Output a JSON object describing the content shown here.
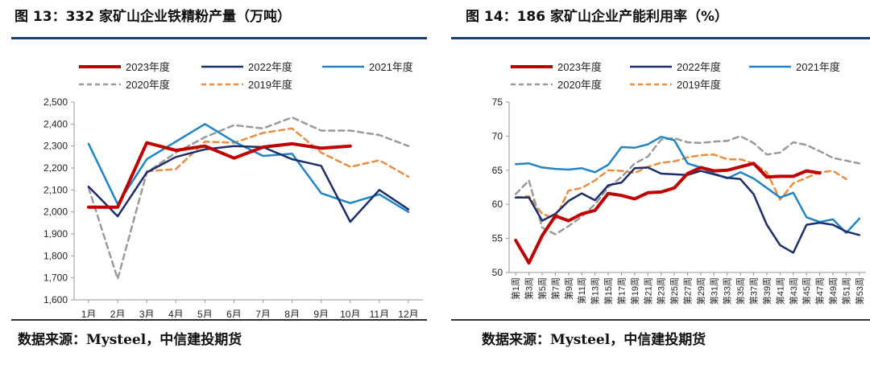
{
  "charts": [
    {
      "fig_label": "图 13：",
      "title_num": "332",
      "title_text": " 家矿山企业铁精粉产量（万吨）",
      "source": "数据来源：Mysteel，中信建投期货",
      "chart_data": {
        "type": "line",
        "title": "332 家矿山企业铁精粉产量（万吨）",
        "categories": [
          "1月",
          "2月",
          "3月",
          "4月",
          "5月",
          "6月",
          "7月",
          "8月",
          "9月",
          "10月",
          "11月",
          "12月"
        ],
        "ylim": [
          1600,
          2500
        ],
        "yticks": [
          1600,
          1700,
          1800,
          1900,
          2000,
          2100,
          2200,
          2300,
          2400,
          2500
        ],
        "ytick_labels": [
          "1,600",
          "1,700",
          "1,800",
          "1,900",
          "2,000",
          "2,100",
          "2,200",
          "2,300",
          "2,400",
          "2,500"
        ],
        "series": [
          {
            "name": "2023年度",
            "color": "#c00000",
            "dash": false,
            "width": 4,
            "values": [
              2022,
              2022,
              2315,
              2280,
              2300,
              2245,
              2295,
              2310,
              2290,
              2300,
              null,
              null
            ]
          },
          {
            "name": "2022年度",
            "color": "#1a2f6b",
            "dash": false,
            "width": 2.5,
            "values": [
              2115,
              1980,
              2180,
              2250,
              2285,
              2300,
              2295,
              2240,
              2210,
              1955,
              2100,
              2012
            ]
          },
          {
            "name": "2021年度",
            "color": "#1f85c8",
            "dash": false,
            "width": 2.5,
            "values": [
              2310,
              2035,
              2240,
              2320,
              2400,
              2320,
              2255,
              2265,
              2085,
              2040,
              2080,
              2000
            ]
          },
          {
            "name": "2020年度",
            "color": "#9a9a9a",
            "dash": true,
            "width": 2.5,
            "values": [
              2110,
              1695,
              2180,
              2270,
              2340,
              2395,
              2380,
              2430,
              2370,
              2370,
              2350,
              2300
            ]
          },
          {
            "name": "2019年度",
            "color": "#f08a3c",
            "dash": true,
            "width": 2.5,
            "values": [
              null,
              null,
              2185,
              2195,
              2320,
              2315,
              2360,
              2380,
              2270,
              2205,
              2235,
              2160
            ]
          }
        ]
      }
    },
    {
      "fig_label": "图 14：",
      "title_num": "186",
      "title_text": " 家矿山企业产能利用率（%）",
      "source": "数据来源：Mysteel，中信建投期货",
      "chart_data": {
        "type": "line",
        "title": "186 家矿山企业产能利用率（%）",
        "categories": [
          "第1周",
          "第3周",
          "第5周",
          "第7周",
          "第9周",
          "第11周",
          "第13周",
          "第15周",
          "第17周",
          "第19周",
          "第21周",
          "第23周",
          "第25周",
          "第27周",
          "第29周",
          "第31周",
          "第33周",
          "第35周",
          "第37周",
          "第39周",
          "第41周",
          "第43周",
          "第45周",
          "第47周",
          "第49周",
          "第51周",
          "第53周"
        ],
        "ylim": [
          50,
          75
        ],
        "yticks": [
          50,
          55,
          60,
          65,
          70,
          75
        ],
        "ytick_labels": [
          "50",
          "55",
          "60",
          "65",
          "70",
          "75"
        ],
        "series": [
          {
            "name": "2023年度",
            "color": "#c00000",
            "dash": false,
            "width": 4,
            "values": [
              54.7,
              51.4,
              55.4,
              58.3,
              57.6,
              58.6,
              59.1,
              61.6,
              61.3,
              60.8,
              61.7,
              61.8,
              62.4,
              64.5,
              65.4,
              64.9,
              65.0,
              65.5,
              66.0,
              64.0,
              64.1,
              64.1,
              64.9,
              64.6,
              null,
              null,
              null
            ]
          },
          {
            "name": "2022年度",
            "color": "#1a2f6b",
            "dash": false,
            "width": 2.5,
            "values": [
              61.0,
              61.0,
              57.6,
              58.6,
              60.5,
              61.6,
              60.6,
              62.8,
              63.2,
              65.3,
              65.4,
              64.5,
              64.4,
              64.3,
              64.9,
              64.4,
              63.9,
              63.7,
              61.5,
              57.0,
              54.0,
              52.9,
              57.0,
              57.3,
              57.0,
              56.0,
              55.5
            ]
          },
          {
            "name": "2021年度",
            "color": "#1f85c8",
            "dash": false,
            "width": 2.5,
            "values": [
              65.9,
              66.0,
              65.4,
              65.2,
              65.1,
              65.3,
              64.7,
              65.8,
              68.4,
              68.3,
              68.8,
              69.9,
              69.4,
              66.0,
              65.4,
              64.5,
              63.8,
              64.7,
              63.8,
              62.4,
              61.0,
              61.7,
              58.1,
              57.4,
              57.8,
              55.8,
              57.9
            ]
          },
          {
            "name": "2020年度",
            "color": "#9a9a9a",
            "dash": true,
            "width": 2.5,
            "values": [
              61.5,
              63.5,
              56.6,
              55.6,
              56.8,
              58.2,
              60.0,
              62.5,
              64.0,
              66.0,
              67.0,
              69.5,
              69.7,
              69.1,
              69.0,
              69.2,
              69.3,
              70.0,
              69.0,
              67.3,
              67.6,
              69.1,
              68.7,
              67.8,
              66.8,
              66.4,
              66.0
            ]
          },
          {
            "name": "2019年度",
            "color": "#f08a3c",
            "dash": true,
            "width": 2.5,
            "values": [
              61.0,
              61.2,
              58.6,
              57.9,
              62.0,
              62.4,
              63.5,
              65.0,
              64.9,
              64.6,
              65.5,
              66.1,
              66.3,
              66.9,
              67.2,
              67.3,
              66.6,
              66.6,
              66.0,
              64.7,
              60.7,
              63.1,
              63.9,
              64.7,
              64.9,
              63.7,
              null
            ]
          }
        ]
      }
    }
  ]
}
